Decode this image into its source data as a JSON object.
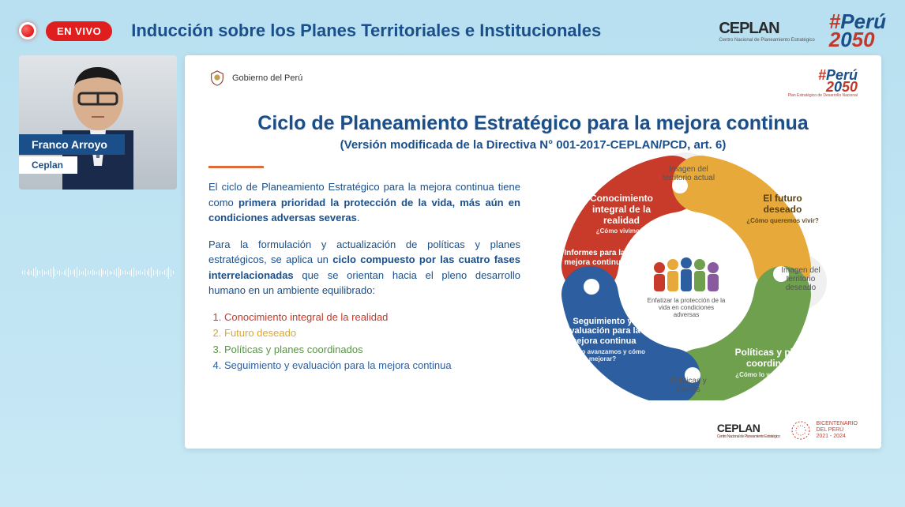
{
  "header": {
    "live_badge": "EN VIVO",
    "title": "Inducción sobre los Planes Territoriales e Institucionales",
    "logos": {
      "ceplan": "CEPLAN",
      "ceplan_sub": "Centro Nacional de Planeamiento Estratégico",
      "peru_hash": "#",
      "peru_text": "Perú",
      "peru_year_a": "2",
      "peru_year_b": "0",
      "peru_year_c": "5",
      "peru_year_d": "0"
    }
  },
  "speaker": {
    "name": "Franco Arroyo",
    "org": "Ceplan"
  },
  "slide": {
    "gov_label": "Gobierno del Perú",
    "title": "Ciclo de Planeamiento Estratégico para la mejora continua",
    "subtitle": "(Versión modificada de la Directiva N° 001-2017-CEPLAN/PCD, art. 6)",
    "para1_a": "El ciclo de Planeamiento Estratégico para la mejora continua tiene como ",
    "para1_b": "primera prioridad la protección de la vida, más aún en condiciones adversas severas",
    "para1_c": ".",
    "para2_a": "Para la formulación y actualización de políticas y planes estratégicos, se aplica un ",
    "para2_b": "ciclo compuesto por las cuatro fases interrelacionadas",
    "para2_c": " que se orientan hacia el pleno desarrollo humano en un ambiente equilibrado:",
    "phases": {
      "p1": "Conocimiento integral de la realidad",
      "p2": "Futuro deseado",
      "p3": "Políticas y planes coordinados",
      "p4": "Seguimiento y evaluación para la mejora continua"
    },
    "diagram": {
      "red_label": "Conocimiento integral de la realidad",
      "red_q": "¿Cómo vivimos?",
      "yellow_label": "El futuro deseado",
      "yellow_q": "¿Cómo queremos vivir?",
      "green_label": "Políticas y planes coordinados",
      "green_q": "¿Cómo lo vamos a hacer?",
      "blue_label_a": "Informes para la mejora continua",
      "blue_label_b": "Seguimiento y evaluación para la mejora continua",
      "blue_q": "¿Cuánto avanzamos y cómo mejorar?",
      "outer_top": "Imagen del territorio actual",
      "outer_right": "Imagen del territorio deseado",
      "outer_bottom": "Políticas y planes",
      "center": "Enfatizar la protección de la vida en condiciones adversas",
      "colors": {
        "red": "#c83a2a",
        "yellow": "#e6a93a",
        "green": "#6ea04e",
        "blue": "#2d5fa0",
        "outer": "#e8e8e8"
      }
    },
    "footer": {
      "ceplan": "CEPLAN",
      "ceplan_sub": "Centro Nacional de Planeamiento Estratégico",
      "bicent_a": "BICENTENARIO",
      "bicent_b": "DEL PERÚ",
      "bicent_c": "2021 - 2024"
    },
    "peru_small_sub": "Plan Estratégico de Desarrollo Nacional"
  }
}
